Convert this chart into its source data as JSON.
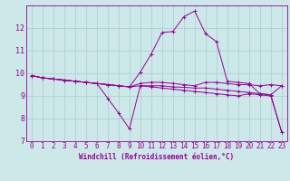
{
  "background_color": "#cce8e8",
  "grid_color": "#aacccc",
  "line_color": "#990099",
  "marker": "+",
  "xlabel": "Windchill (Refroidissement éolien,°C)",
  "ylabel": "",
  "xlim": [
    -0.5,
    23.5
  ],
  "ylim": [
    7,
    13
  ],
  "yticks": [
    7,
    8,
    9,
    10,
    11,
    12
  ],
  "xticks": [
    0,
    1,
    2,
    3,
    4,
    5,
    6,
    7,
    8,
    9,
    10,
    11,
    12,
    13,
    14,
    15,
    16,
    17,
    18,
    19,
    20,
    21,
    22,
    23
  ],
  "lines": [
    {
      "x": [
        0,
        1,
        2,
        3,
        4,
        5,
        6,
        7,
        8,
        9,
        10,
        11,
        12,
        13,
        14,
        15,
        16,
        17,
        18,
        19,
        20,
        21,
        22,
        23
      ],
      "y": [
        9.9,
        9.8,
        9.75,
        9.7,
        9.65,
        9.6,
        9.55,
        8.9,
        8.25,
        7.55,
        9.45,
        9.4,
        9.35,
        9.3,
        9.25,
        9.2,
        9.15,
        9.1,
        9.05,
        9.0,
        9.1,
        9.05,
        9.0,
        7.4
      ]
    },
    {
      "x": [
        0,
        1,
        2,
        3,
        4,
        5,
        6,
        7,
        8,
        9,
        10,
        11,
        12,
        13,
        14,
        15,
        16,
        17,
        18,
        19,
        20,
        21,
        22,
        23
      ],
      "y": [
        9.9,
        9.8,
        9.75,
        9.7,
        9.65,
        9.6,
        9.55,
        9.5,
        9.45,
        9.4,
        10.05,
        10.85,
        11.8,
        11.85,
        12.5,
        12.75,
        11.75,
        11.4,
        9.65,
        9.6,
        9.55,
        9.1,
        9.05,
        7.4
      ]
    },
    {
      "x": [
        0,
        1,
        2,
        3,
        4,
        5,
        6,
        7,
        8,
        9,
        10,
        11,
        12,
        13,
        14,
        15,
        16,
        17,
        18,
        19,
        20,
        21,
        22,
        23
      ],
      "y": [
        9.9,
        9.8,
        9.75,
        9.7,
        9.65,
        9.6,
        9.55,
        9.5,
        9.45,
        9.4,
        9.55,
        9.6,
        9.6,
        9.55,
        9.5,
        9.45,
        9.6,
        9.6,
        9.55,
        9.5,
        9.5,
        9.45,
        9.5,
        9.45
      ]
    },
    {
      "x": [
        0,
        1,
        2,
        3,
        4,
        5,
        6,
        7,
        8,
        9,
        10,
        11,
        12,
        13,
        14,
        15,
        16,
        17,
        18,
        19,
        20,
        21,
        22,
        23
      ],
      "y": [
        9.9,
        9.8,
        9.75,
        9.7,
        9.65,
        9.6,
        9.55,
        9.5,
        9.45,
        9.4,
        9.45,
        9.45,
        9.45,
        9.4,
        9.38,
        9.35,
        9.35,
        9.3,
        9.25,
        9.2,
        9.15,
        9.1,
        9.05,
        9.45
      ]
    }
  ],
  "tick_fontsize": 5.5,
  "xlabel_fontsize": 5.5,
  "linewidth": 0.7,
  "markersize": 2.5,
  "markeredgewidth": 0.7
}
